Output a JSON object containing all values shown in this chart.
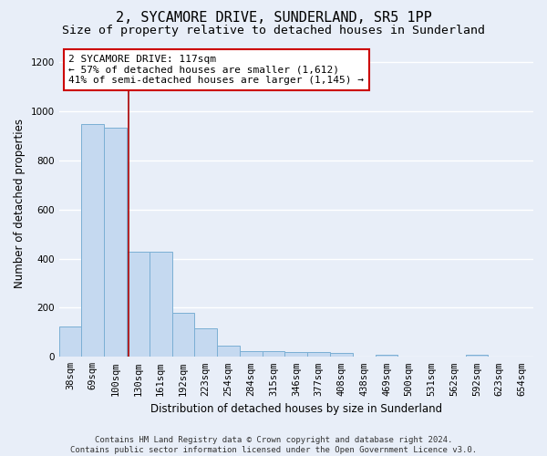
{
  "title": "2, SYCAMORE DRIVE, SUNDERLAND, SR5 1PP",
  "subtitle": "Size of property relative to detached houses in Sunderland",
  "xlabel": "Distribution of detached houses by size in Sunderland",
  "ylabel": "Number of detached properties",
  "footer_line1": "Contains HM Land Registry data © Crown copyright and database right 2024.",
  "footer_line2": "Contains public sector information licensed under the Open Government Licence v3.0.",
  "categories": [
    "38sqm",
    "69sqm",
    "100sqm",
    "130sqm",
    "161sqm",
    "192sqm",
    "223sqm",
    "254sqm",
    "284sqm",
    "315sqm",
    "346sqm",
    "377sqm",
    "408sqm",
    "438sqm",
    "469sqm",
    "500sqm",
    "531sqm",
    "562sqm",
    "592sqm",
    "623sqm",
    "654sqm"
  ],
  "values": [
    125,
    950,
    935,
    430,
    430,
    180,
    115,
    45,
    22,
    22,
    18,
    18,
    15,
    0,
    10,
    0,
    0,
    0,
    10,
    0,
    0
  ],
  "bar_color": "#c5d9f0",
  "bar_edge_color": "#7bafd4",
  "annotation_text": "2 SYCAMORE DRIVE: 117sqm\n← 57% of detached houses are smaller (1,612)\n41% of semi-detached houses are larger (1,145) →",
  "annotation_box_color": "#ffffff",
  "annotation_box_edge_color": "#cc0000",
  "vline_color": "#aa0000",
  "ylim": [
    0,
    1250
  ],
  "yticks": [
    0,
    200,
    400,
    600,
    800,
    1000,
    1200
  ],
  "background_color": "#e8eef8",
  "grid_color": "#ffffff",
  "title_fontsize": 11,
  "subtitle_fontsize": 9.5,
  "axis_label_fontsize": 8.5,
  "tick_fontsize": 7.5,
  "annotation_fontsize": 8,
  "footer_fontsize": 6.5,
  "vline_x_index": 2.567
}
